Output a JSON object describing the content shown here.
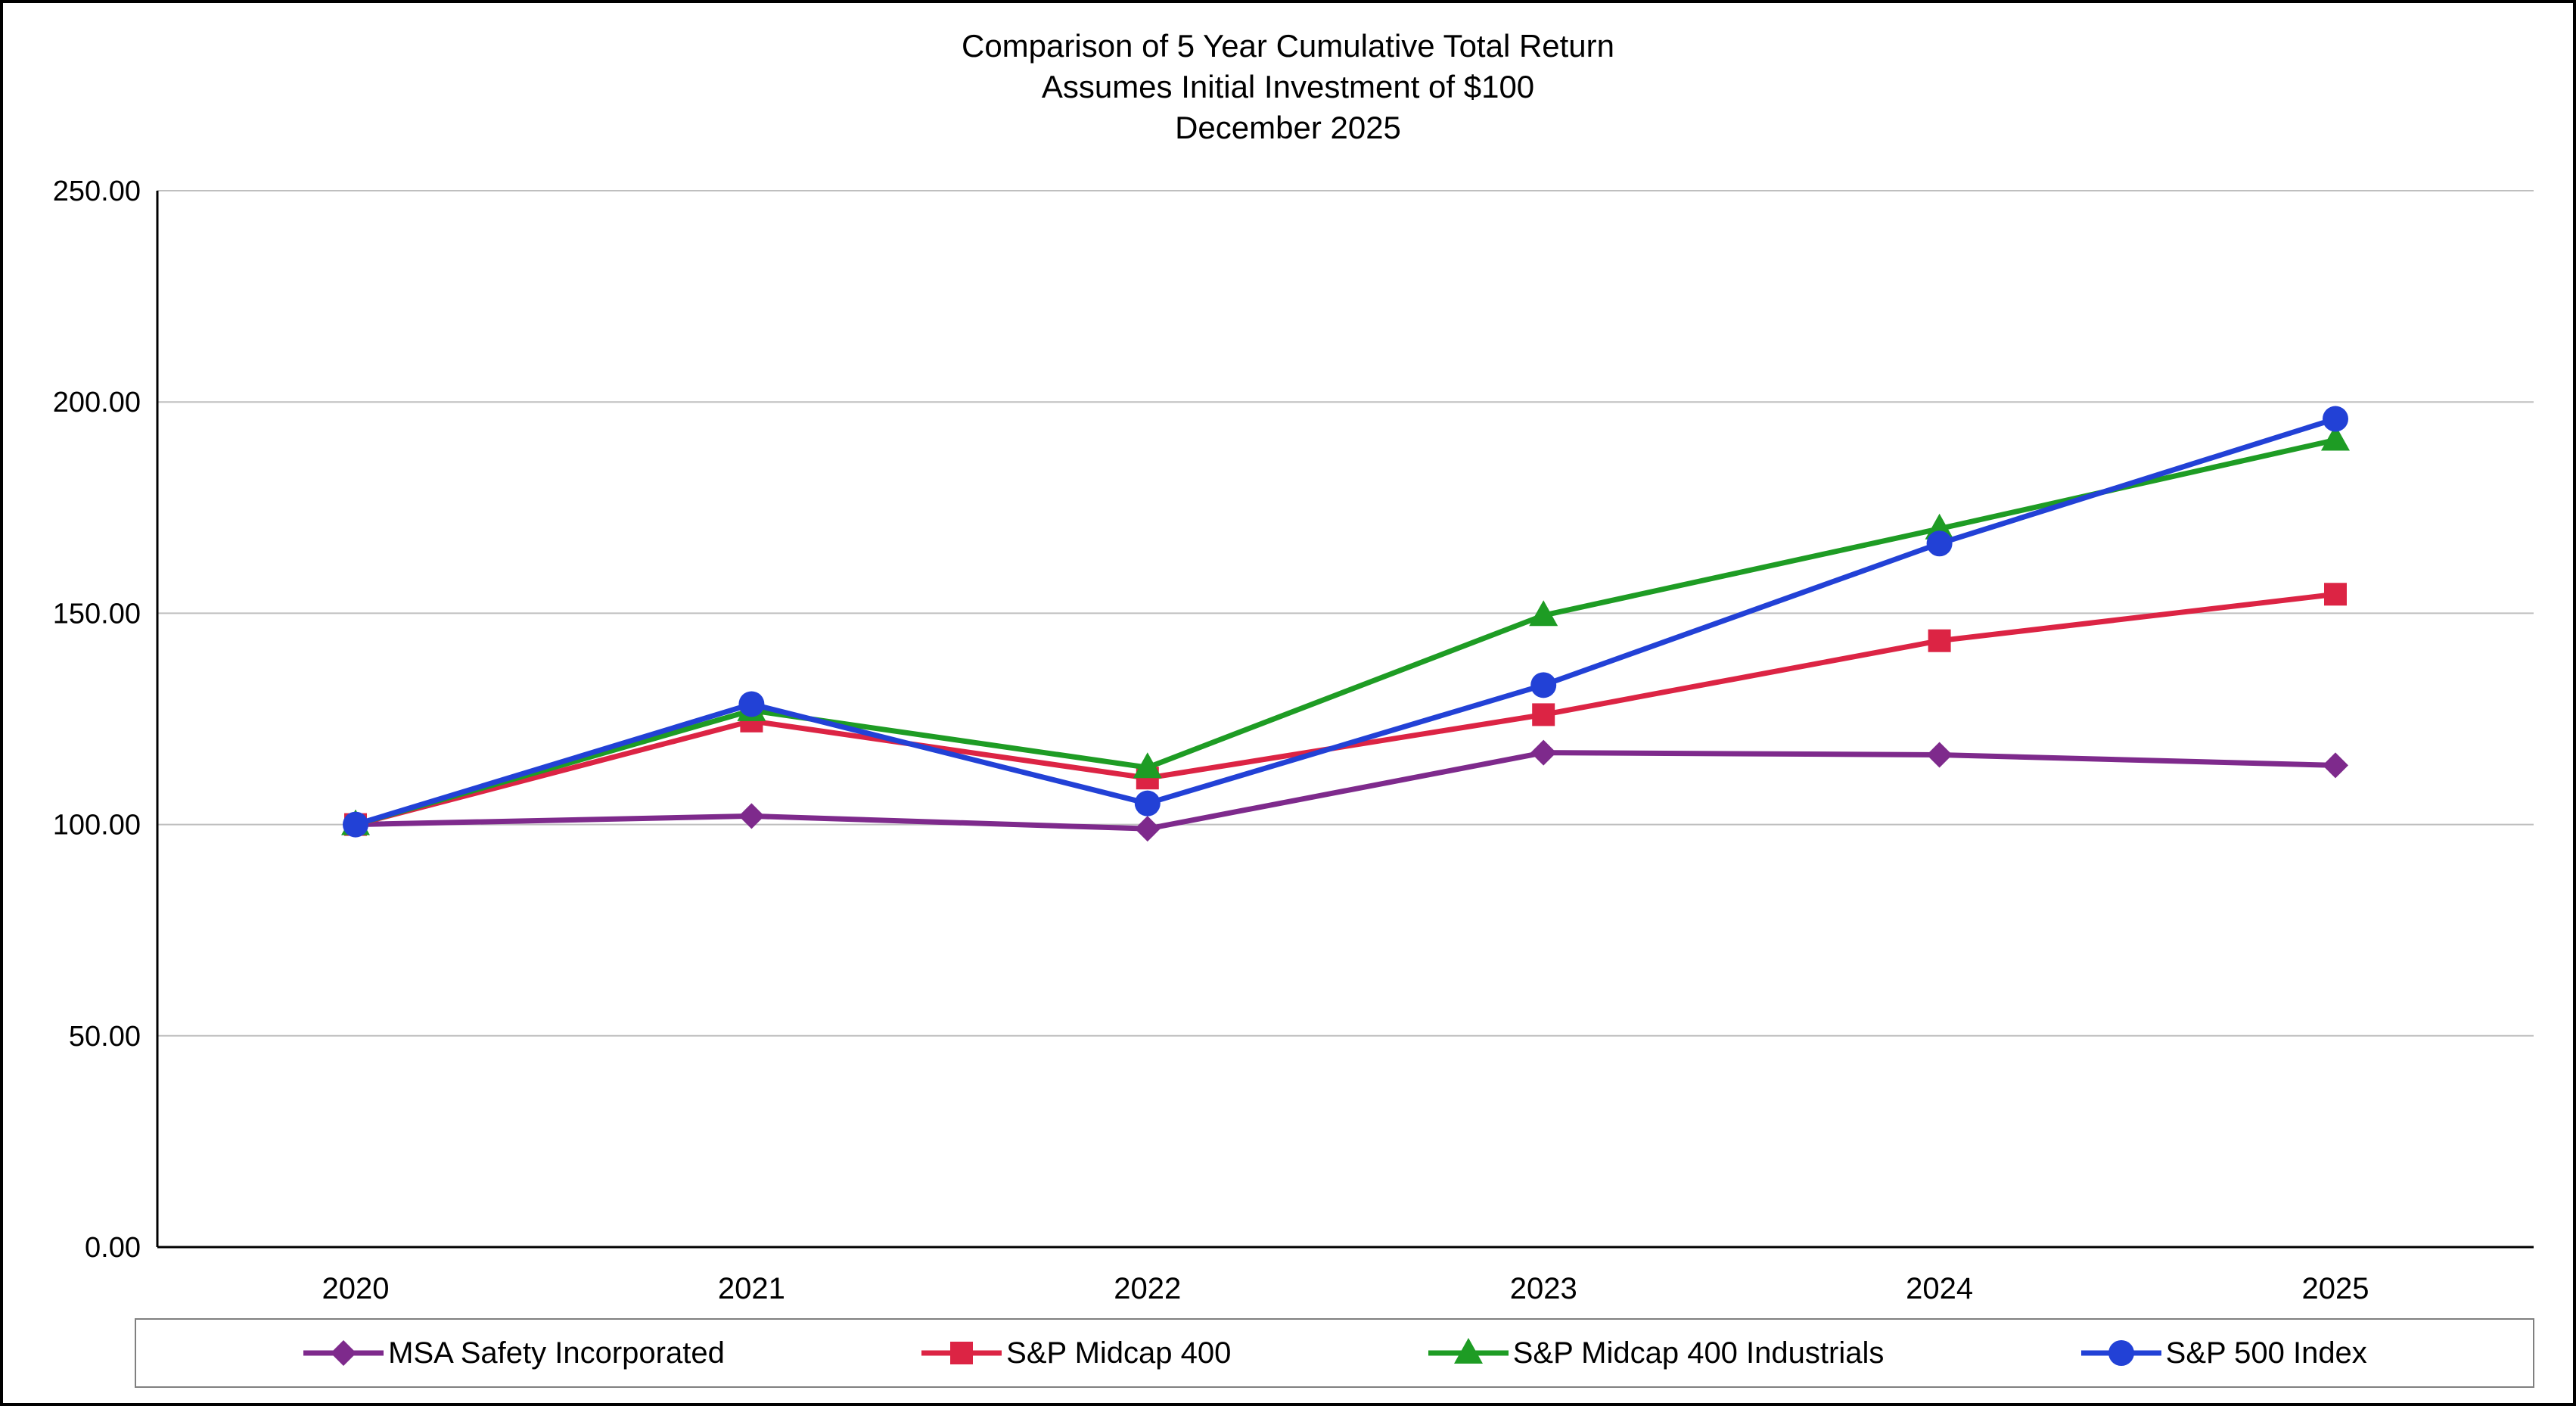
{
  "chart_data": {
    "type": "line",
    "title_lines": [
      "Comparison of 5 Year Cumulative Total Return",
      "Assumes Initial Investment of $100",
      "December 2025"
    ],
    "x_categories": [
      "2020",
      "2021",
      "2022",
      "2023",
      "2024",
      "2025"
    ],
    "series": [
      {
        "name": "MSA Safety Incorporated",
        "color": "#7E2A8C",
        "marker": "diamond",
        "values": [
          100.0,
          102.0,
          99.0,
          117.0,
          116.5,
          114.0
        ]
      },
      {
        "name": "S&P Midcap 400",
        "color": "#DC2444",
        "marker": "square",
        "values": [
          100.0,
          124.5,
          111.0,
          126.0,
          143.5,
          154.5
        ]
      },
      {
        "name": "S&P Midcap 400 Industrials",
        "color": "#1E9C24",
        "marker": "triangle",
        "values": [
          100.0,
          127.0,
          113.5,
          149.5,
          170.0,
          191.0
        ]
      },
      {
        "name": "S&P 500 Index",
        "color": "#2241D6",
        "marker": "circle",
        "values": [
          100.0,
          128.5,
          105.0,
          133.0,
          166.5,
          196.0
        ]
      }
    ],
    "ylim": [
      0,
      250
    ],
    "ytick_step": 50,
    "ytick_labels": [
      "0.00",
      "50.00",
      "100.00",
      "150.00",
      "200.00",
      "250.00"
    ],
    "grid": true,
    "legend_position": "bottom",
    "xlabel": "",
    "ylabel": ""
  },
  "colors": {
    "gridline": "#bfbfbf",
    "axis": "#000000",
    "legend_border": "#808080"
  }
}
